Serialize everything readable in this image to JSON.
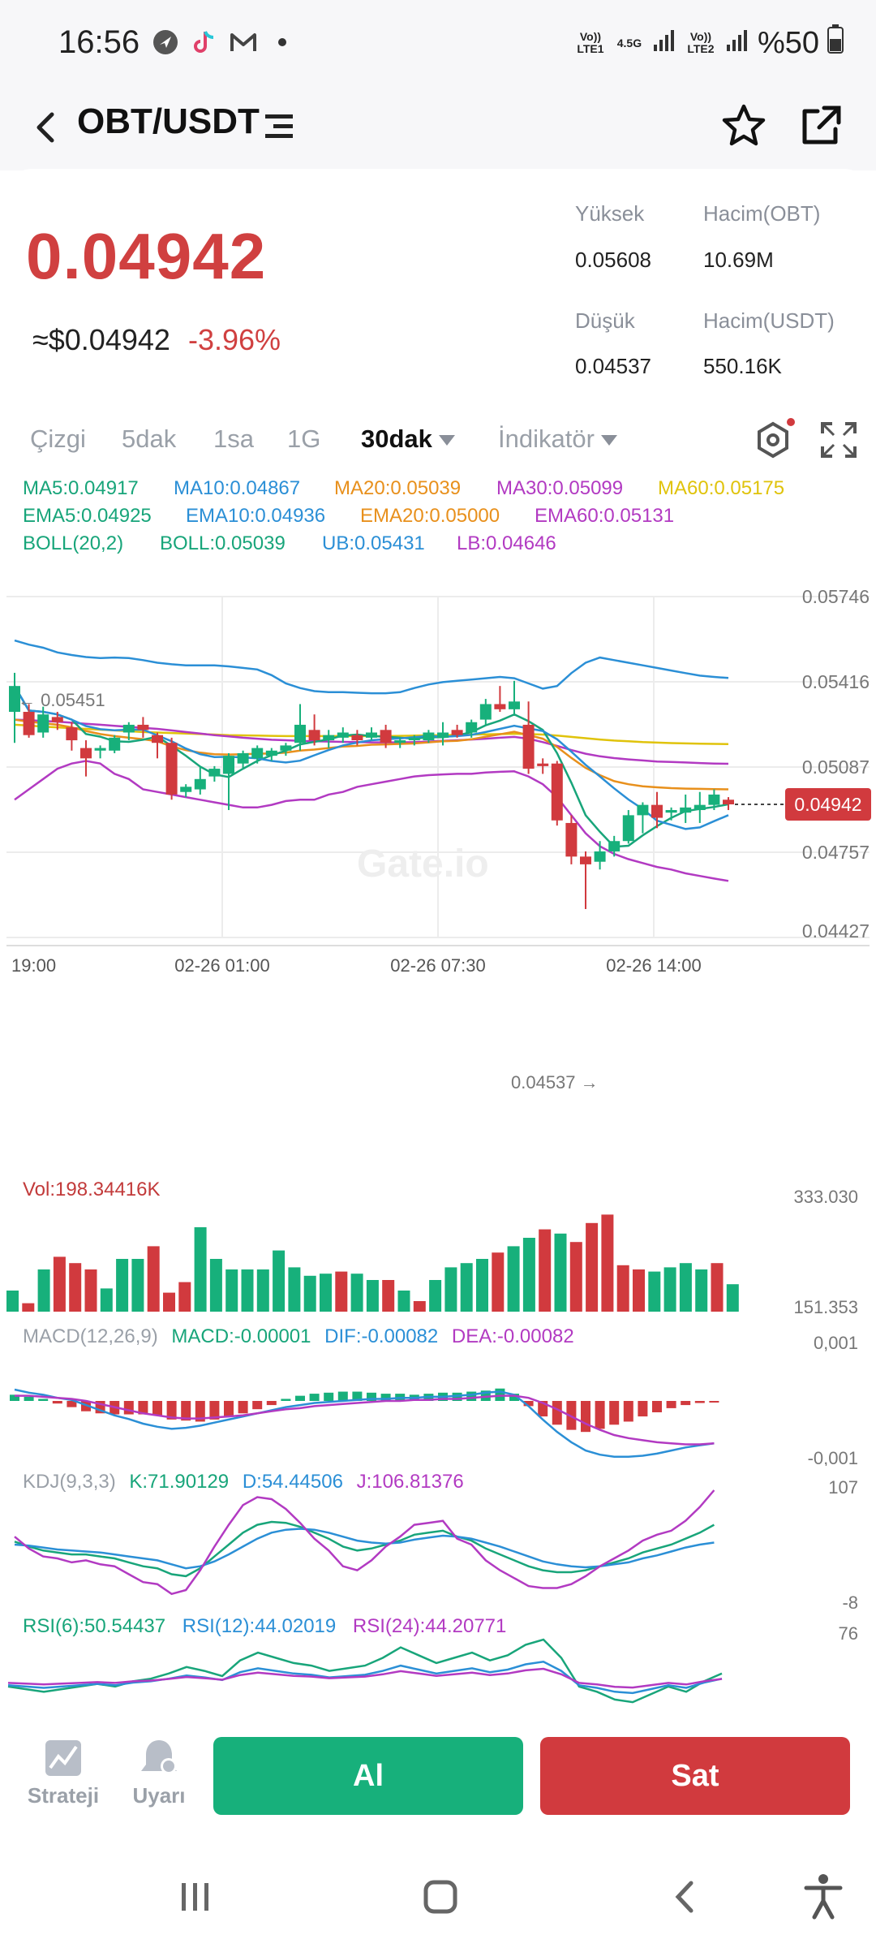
{
  "status_bar": {
    "time": "16:56",
    "net1": "Vo)) LTE1",
    "net1_type": "4.5G",
    "net2": "Vo)) LTE2",
    "battery": "%50",
    "icons": [
      "navigation-app-icon",
      "tiktok-icon",
      "gmail-icon",
      "dot-icon",
      "signal-icon",
      "battery-icon"
    ]
  },
  "header": {
    "pair": "OBT/USDT"
  },
  "ticker": {
    "last_price": "0.04942",
    "usd_price": "≈$0.04942",
    "change": "-3.96%",
    "high_label": "Yüksek",
    "high": "0.05608",
    "vol_base_label": "Hacim(OBT)",
    "vol_base": "10.69M",
    "low_label": "Düşük",
    "low": "0.04537",
    "vol_quote_label": "Hacim(USDT)",
    "vol_quote": "550.16K"
  },
  "tabs": [
    "Çizgi",
    "5dak",
    "1sa",
    "1G",
    "30dak",
    "İndikatör"
  ],
  "active_tab": "30dak",
  "indicators": {
    "ma5": "MA5:0.04917",
    "ma10": "MA10:0.04867",
    "ma20": "MA20:0.05039",
    "ma30": "MA30:0.05099",
    "ma60": "MA60:0.05175",
    "ema5": "EMA5:0.04925",
    "ema10": "EMA10:0.04936",
    "ema20": "EMA20:0.05000",
    "ema60": "EMA60:0.05131",
    "boll": "BOLL(20,2)",
    "boll_mid": "BOLL:0.05039",
    "ub": "UB:0.05431",
    "lb": "LB:0.04646"
  },
  "colors": {
    "up": "#17b07b",
    "down": "#d13a3e",
    "ma5": "#18a57a",
    "ma10": "#2b8fd6",
    "ma20": "#e8901c",
    "ma30": "#b23ac2",
    "ma60": "#e0c30b"
  },
  "watermark": "Gate.io",
  "chart_data": {
    "type": "candlestick",
    "y_ticks": [
      "0.05746",
      "0.05416",
      "0.05087",
      "0.04757",
      "0.04427"
    ],
    "ylim": [
      0.04427,
      0.05746
    ],
    "x_ticks": [
      "19:00",
      "02-26 01:00",
      "02-26 07:30",
      "02-26 14:00"
    ],
    "max_marker": "← 0.05451",
    "min_marker": "0.04537 →",
    "current_price_tag": "0.04942",
    "candles": [
      [
        0.053,
        0.054,
        0.0518,
        0.05451
      ],
      [
        0.053,
        0.0521,
        0.052,
        0.0533
      ],
      [
        0.0522,
        0.0529,
        0.052,
        0.0532
      ],
      [
        0.0528,
        0.0526,
        0.0523,
        0.053
      ],
      [
        0.0524,
        0.0519,
        0.0515,
        0.0526
      ],
      [
        0.0516,
        0.0512,
        0.0505,
        0.0519
      ],
      [
        0.0515,
        0.0516,
        0.0512,
        0.0517
      ],
      [
        0.0515,
        0.052,
        0.0514,
        0.0521
      ],
      [
        0.0522,
        0.0525,
        0.0519,
        0.0526
      ],
      [
        0.0525,
        0.0523,
        0.052,
        0.0528
      ],
      [
        0.0521,
        0.0518,
        0.0512,
        0.0522
      ],
      [
        0.0518,
        0.0498,
        0.0496,
        0.052
      ],
      [
        0.0499,
        0.0501,
        0.0497,
        0.0502
      ],
      [
        0.05,
        0.0504,
        0.0498,
        0.0509
      ],
      [
        0.0505,
        0.0508,
        0.0503,
        0.0509
      ],
      [
        0.0506,
        0.0513,
        0.0492,
        0.0514
      ],
      [
        0.051,
        0.0514,
        0.0508,
        0.0515
      ],
      [
        0.0512,
        0.0516,
        0.051,
        0.0517
      ],
      [
        0.0513,
        0.0515,
        0.0511,
        0.0516
      ],
      [
        0.0515,
        0.0517,
        0.0513,
        0.0518
      ],
      [
        0.0518,
        0.0525,
        0.0515,
        0.0533
      ],
      [
        0.0523,
        0.0519,
        0.0517,
        0.0529
      ],
      [
        0.0519,
        0.0521,
        0.0516,
        0.0523
      ],
      [
        0.052,
        0.0522,
        0.0518,
        0.0524
      ],
      [
        0.0521,
        0.0519,
        0.0517,
        0.0523
      ],
      [
        0.052,
        0.0522,
        0.0519,
        0.0524
      ],
      [
        0.0523,
        0.0518,
        0.0516,
        0.0525
      ],
      [
        0.0518,
        0.0519,
        0.0516,
        0.052
      ],
      [
        0.0519,
        0.052,
        0.0517,
        0.0521
      ],
      [
        0.0519,
        0.0522,
        0.0518,
        0.0523
      ],
      [
        0.052,
        0.0522,
        0.0517,
        0.0526
      ],
      [
        0.0523,
        0.0521,
        0.052,
        0.0525
      ],
      [
        0.0522,
        0.0526,
        0.052,
        0.0527
      ],
      [
        0.0527,
        0.0533,
        0.0525,
        0.0535
      ],
      [
        0.0533,
        0.0531,
        0.053,
        0.054
      ],
      [
        0.0531,
        0.0534,
        0.0529,
        0.0542
      ],
      [
        0.0525,
        0.0508,
        0.0506,
        0.0534
      ],
      [
        0.051,
        0.0509,
        0.0506,
        0.0512
      ],
      [
        0.051,
        0.0488,
        0.0486,
        0.0511
      ],
      [
        0.0487,
        0.0474,
        0.0471,
        0.049
      ],
      [
        0.0474,
        0.0471,
        0.04537,
        0.0476
      ],
      [
        0.0472,
        0.0476,
        0.0469,
        0.048
      ],
      [
        0.0476,
        0.048,
        0.0474,
        0.0482
      ],
      [
        0.048,
        0.049,
        0.0479,
        0.0492
      ],
      [
        0.049,
        0.0494,
        0.0483,
        0.0495
      ],
      [
        0.0494,
        0.0489,
        0.0485,
        0.0499
      ],
      [
        0.0491,
        0.0492,
        0.0488,
        0.0493
      ],
      [
        0.0491,
        0.0493,
        0.0487,
        0.0498
      ],
      [
        0.0492,
        0.0494,
        0.0487,
        0.0499
      ],
      [
        0.0494,
        0.0498,
        0.0492,
        0.05
      ],
      [
        0.0496,
        0.04942,
        0.0492,
        0.0497
      ]
    ],
    "candle_fields": [
      "open",
      "close",
      "low",
      "high"
    ],
    "ub": [
      0.05576,
      0.0556,
      0.05548,
      0.0553,
      0.0552,
      0.05512,
      0.05508,
      0.0551,
      0.05508,
      0.055,
      0.0549,
      0.05484,
      0.0548,
      0.0548,
      0.0548,
      0.05476,
      0.0547,
      0.05464,
      0.05442,
      0.0541,
      0.05392,
      0.0538,
      0.05376,
      0.05376,
      0.05374,
      0.05372,
      0.05372,
      0.05376,
      0.05392,
      0.05406,
      0.05415,
      0.0542,
      0.05425,
      0.0543,
      0.05435,
      0.0543,
      0.0541,
      0.0539,
      0.054,
      0.0545,
      0.0549,
      0.0551,
      0.055,
      0.0549,
      0.0548,
      0.0547,
      0.0546,
      0.0545,
      0.0544,
      0.05435,
      0.05431
    ],
    "lb": [
      0.0496,
      0.05,
      0.0504,
      0.0508,
      0.051,
      0.0511,
      0.051,
      0.0506,
      0.0504,
      0.05,
      0.0499,
      0.0498,
      0.0497,
      0.0496,
      0.0495,
      0.0494,
      0.0493,
      0.0493,
      0.0494,
      0.04955,
      0.0496,
      0.0496,
      0.0498,
      0.0499,
      0.0501,
      0.0502,
      0.0503,
      0.0504,
      0.0505,
      0.05055,
      0.05058,
      0.0506,
      0.0506,
      0.05065,
      0.05068,
      0.0507,
      0.0505,
      0.0502,
      0.0497,
      0.049,
      0.0483,
      0.0478,
      0.0475,
      0.0473,
      0.04715,
      0.047,
      0.0469,
      0.04675,
      0.04665,
      0.04655,
      0.04646
    ],
    "ma60_line": [
      0.0525,
      0.05247,
      0.05243,
      0.0524,
      0.05237,
      0.05234,
      0.05231,
      0.05228,
      0.05225,
      0.05222,
      0.0522,
      0.05218,
      0.05216,
      0.05214,
      0.05212,
      0.0521,
      0.05209,
      0.05208,
      0.05207,
      0.05206,
      0.05206,
      0.05206,
      0.05206,
      0.05206,
      0.05206,
      0.05206,
      0.05206,
      0.05207,
      0.05208,
      0.05209,
      0.0521,
      0.05211,
      0.05212,
      0.05213,
      0.05214,
      0.05215,
      0.05214,
      0.05212,
      0.05208,
      0.05203,
      0.05198,
      0.05193,
      0.05189,
      0.05186,
      0.05183,
      0.05181,
      0.05179,
      0.05178,
      0.05177,
      0.05176,
      0.05175
    ],
    "ma30_line": [
      0.0527,
      0.05268,
      0.05265,
      0.05262,
      0.05258,
      0.05254,
      0.0525,
      0.05246,
      0.05242,
      0.05238,
      0.05234,
      0.05228,
      0.05222,
      0.05216,
      0.0521,
      0.05205,
      0.052,
      0.05196,
      0.05192,
      0.0519,
      0.05188,
      0.05186,
      0.05185,
      0.05184,
      0.05183,
      0.05182,
      0.05182,
      0.05182,
      0.05183,
      0.05185,
      0.05188,
      0.0519,
      0.05193,
      0.05196,
      0.052,
      0.05203,
      0.05196,
      0.05183,
      0.05168,
      0.05152,
      0.05138,
      0.05128,
      0.05121,
      0.05116,
      0.05112,
      0.05108,
      0.05106,
      0.05104,
      0.05102,
      0.051,
      0.05099
    ],
    "ema20_line": [
      0.0527,
      0.05262,
      0.05256,
      0.0525,
      0.0524,
      0.05226,
      0.05214,
      0.05206,
      0.052,
      0.05194,
      0.05186,
      0.05166,
      0.05152,
      0.05142,
      0.05136,
      0.05135,
      0.05136,
      0.05138,
      0.05139,
      0.05142,
      0.0515,
      0.05154,
      0.0516,
      0.05166,
      0.05168,
      0.05173,
      0.05174,
      0.05176,
      0.05178,
      0.05182,
      0.05186,
      0.05188,
      0.05194,
      0.05204,
      0.05213,
      0.05223,
      0.0521,
      0.05196,
      0.05164,
      0.05122,
      0.05083,
      0.05055,
      0.05032,
      0.0502,
      0.05012,
      0.05008,
      0.05005,
      0.05003,
      0.05002,
      0.05001,
      0.05
    ],
    "macd": {
      "label": "MACD(12,26,9)",
      "macd": "MACD:-0.00001",
      "dif": "DIF:-0.00082",
      "dea": "DEA:-0.00082",
      "y_top": "0,001",
      "y_bottom": "-0,001",
      "hist": [
        0.00012,
        8e-05,
        4e-05,
        -5e-05,
        -0.00012,
        -0.0002,
        -0.00024,
        -0.00026,
        -0.00026,
        -0.00026,
        -0.00028,
        -0.00036,
        -0.00038,
        -0.0004,
        -0.00036,
        -0.0003,
        -0.00024,
        -0.00016,
        -8e-05,
        4e-05,
        0.0001,
        0.00014,
        0.00016,
        0.00018,
        0.00018,
        0.00016,
        0.00014,
        0.00014,
        0.00012,
        0.00014,
        0.00016,
        0.00016,
        0.00018,
        0.0002,
        0.00024,
        0.00014,
        -0.0001,
        -0.0003,
        -0.00046,
        -0.00056,
        -0.0006,
        -0.00054,
        -0.00046,
        -0.0004,
        -0.0003,
        -0.00022,
        -0.00014,
        -8e-05,
        -4e-05,
        -1e-05
      ],
      "dif_line": [
        0.00022,
        0.00016,
        0.00012,
        6e-05,
        2e-05,
        -8e-05,
        -0.00018,
        -0.00028,
        -0.00035,
        -0.00044,
        -0.0005,
        -0.00054,
        -0.00052,
        -0.00048,
        -0.00042,
        -0.00036,
        -0.0003,
        -0.00024,
        -0.00018,
        -0.00012,
        -8e-05,
        -4e-05,
        -2e-05,
        0.0,
        2e-05,
        4e-05,
        4e-05,
        6e-05,
        6e-05,
        8e-05,
        8e-05,
        0.0001,
        0.00012,
        0.00016,
        0.00018,
        0.00012,
        -0.0001,
        -0.00036,
        -0.0006,
        -0.0008,
        -0.00096,
        -0.00104,
        -0.00108,
        -0.00108,
        -0.00106,
        -0.00102,
        -0.00096,
        -0.0009,
        -0.00086,
        -0.00082
      ],
      "dea_line": [
        0.0001,
        0.0001,
        8e-05,
        6e-05,
        4e-05,
        0.0,
        -6e-05,
        -0.00012,
        -0.00018,
        -0.00024,
        -0.00028,
        -0.00032,
        -0.00034,
        -0.00034,
        -0.00032,
        -0.0003,
        -0.00028,
        -0.00024,
        -0.0002,
        -0.00016,
        -0.00014,
        -0.0001,
        -8e-05,
        -6e-05,
        -4e-05,
        -2e-05,
        0.0,
        0.0,
        2e-05,
        2e-05,
        4e-05,
        4e-05,
        6e-05,
        8e-05,
        0.0001,
        0.0001,
        6e-05,
        -4e-05,
        -0.00016,
        -0.0003,
        -0.00044,
        -0.00056,
        -0.00066,
        -0.00072,
        -0.00076,
        -0.0008,
        -0.00082,
        -0.00084,
        -0.00084,
        -0.00082
      ]
    },
    "volume": {
      "label": "Vol:198.34416K",
      "y_top": "333.030",
      "y_bottom": "151.353",
      "bars": [
        0.2,
        0.08,
        0.4,
        0.52,
        0.46,
        0.4,
        0.22,
        0.5,
        0.5,
        0.62,
        0.18,
        0.28,
        0.8,
        0.5,
        0.4,
        0.4,
        0.4,
        0.58,
        0.42,
        0.34,
        0.36,
        0.38,
        0.36,
        0.3,
        0.3,
        0.2,
        0.1,
        0.3,
        0.42,
        0.46,
        0.5,
        0.56,
        0.62,
        0.7,
        0.78,
        0.74,
        0.66,
        0.84,
        0.92,
        0.44,
        0.4,
        0.38,
        0.42,
        0.46,
        0.4,
        0.46,
        0.26
      ]
    },
    "kdj": {
      "label": "KDJ(9,3,3)",
      "k": "K:71.90129",
      "d": "D:54.44506",
      "j": "J:106.81376",
      "y_top": "107",
      "y_bottom": "-8",
      "k_line": [
        55,
        50,
        46,
        44,
        42,
        42,
        40,
        38,
        34,
        30,
        28,
        22,
        20,
        28,
        40,
        52,
        64,
        72,
        75,
        74,
        70,
        64,
        58,
        50,
        46,
        48,
        52,
        56,
        62,
        64,
        66,
        60,
        56,
        48,
        42,
        36,
        30,
        26,
        24,
        24,
        26,
        30,
        34,
        38,
        44,
        48,
        52,
        58,
        64,
        72
      ],
      "d_line": [
        52,
        51,
        49,
        47,
        46,
        45,
        44,
        42,
        40,
        38,
        36,
        32,
        28,
        30,
        35,
        42,
        50,
        58,
        64,
        67,
        68,
        67,
        64,
        60,
        56,
        54,
        53,
        54,
        57,
        59,
        61,
        60,
        58,
        54,
        50,
        45,
        40,
        35,
        32,
        30,
        29,
        30,
        32,
        34,
        38,
        41,
        45,
        49,
        52,
        54
      ],
      "j_line": [
        60,
        48,
        40,
        38,
        34,
        36,
        32,
        30,
        22,
        14,
        12,
        2,
        6,
        26,
        50,
        72,
        92,
        100,
        98,
        88,
        74,
        58,
        46,
        30,
        26,
        36,
        50,
        60,
        72,
        74,
        76,
        58,
        52,
        36,
        26,
        18,
        10,
        8,
        8,
        12,
        20,
        30,
        38,
        46,
        56,
        62,
        66,
        76,
        90,
        107
      ]
    },
    "rsi": {
      "rsi6": "RSI(6):50.54437",
      "rsi12": "RSI(12):44.02019",
      "rsi24": "RSI(24):44.20771",
      "y_top": "76"
    }
  },
  "bottom": {
    "strategy": "Strateji",
    "alert": "Uyarı",
    "buy": "Al",
    "sell": "Sat"
  }
}
